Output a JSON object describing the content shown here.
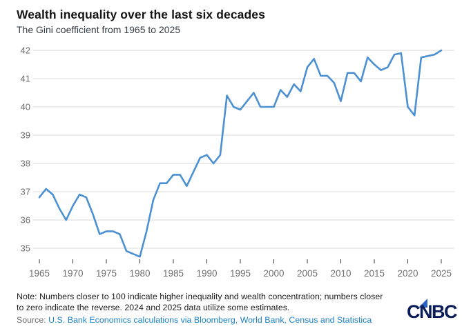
{
  "header": {
    "title": "Wealth inequality over the last six decades",
    "subtitle": "The Gini coefficient from 1965 to 2025"
  },
  "chart_data": {
    "type": "line",
    "title": "Wealth inequality over the last six decades",
    "subtitle": "The Gini coefficient from 1965 to 2025",
    "series_name": "Gini coefficient",
    "x_start": 1965,
    "x_end": 2025,
    "x": [
      1965,
      1966,
      1967,
      1968,
      1969,
      1970,
      1971,
      1972,
      1973,
      1974,
      1975,
      1976,
      1977,
      1978,
      1979,
      1980,
      1981,
      1982,
      1983,
      1984,
      1985,
      1986,
      1987,
      1988,
      1989,
      1990,
      1991,
      1992,
      1993,
      1994,
      1995,
      1996,
      1997,
      1998,
      1999,
      2000,
      2001,
      2002,
      2003,
      2004,
      2005,
      2006,
      2007,
      2008,
      2009,
      2010,
      2011,
      2012,
      2013,
      2014,
      2015,
      2016,
      2017,
      2018,
      2019,
      2020,
      2021,
      2022,
      2023,
      2024,
      2025
    ],
    "values": [
      36.8,
      37.1,
      36.9,
      36.4,
      36.0,
      36.5,
      36.9,
      36.8,
      36.2,
      35.5,
      35.6,
      35.6,
      35.5,
      34.9,
      34.8,
      34.7,
      35.6,
      36.7,
      37.3,
      37.3,
      37.6,
      37.6,
      37.2,
      37.7,
      38.2,
      38.3,
      38.0,
      38.3,
      40.4,
      40.0,
      39.9,
      40.2,
      40.5,
      40.0,
      40.0,
      40.0,
      40.6,
      40.35,
      40.8,
      40.55,
      41.4,
      41.7,
      41.1,
      41.1,
      40.85,
      40.2,
      41.2,
      41.2,
      40.9,
      41.75,
      41.5,
      41.3,
      41.4,
      41.85,
      41.9,
      40.0,
      39.7,
      41.75,
      41.8,
      41.85,
      42.0
    ],
    "xticks": [
      1965,
      1970,
      1975,
      1980,
      1985,
      1990,
      1995,
      2000,
      2005,
      2010,
      2015,
      2020,
      2025
    ],
    "yticks": [
      35,
      36,
      37,
      38,
      39,
      40,
      41,
      42
    ],
    "ylim": [
      34.5,
      42.2
    ],
    "grid": "horizontal",
    "legend": "none",
    "xlabel": "",
    "ylabel": ""
  },
  "footer": {
    "note_lines": [
      "Note: Numbers closer to 100 indicate higher inequality and wealth concentration; numbers closer",
      "to zero indicate the reverse. 2024 and 2025 data utilize some estimates."
    ],
    "source_label": "Source:",
    "source_text": "U.S. Bank Economics calculations via Bloomberg, World Bank, Census and Statistica",
    "logo_text": "CNBC"
  },
  "colors": {
    "line": "#4a90d2",
    "grid": "#d9d9d9",
    "tick": "#3a3a3a",
    "axis_text": "#6e6e6e",
    "link": "#1d82c5",
    "logo_navy": "#0a1d5a",
    "logo_blue": "#2a62c5"
  }
}
